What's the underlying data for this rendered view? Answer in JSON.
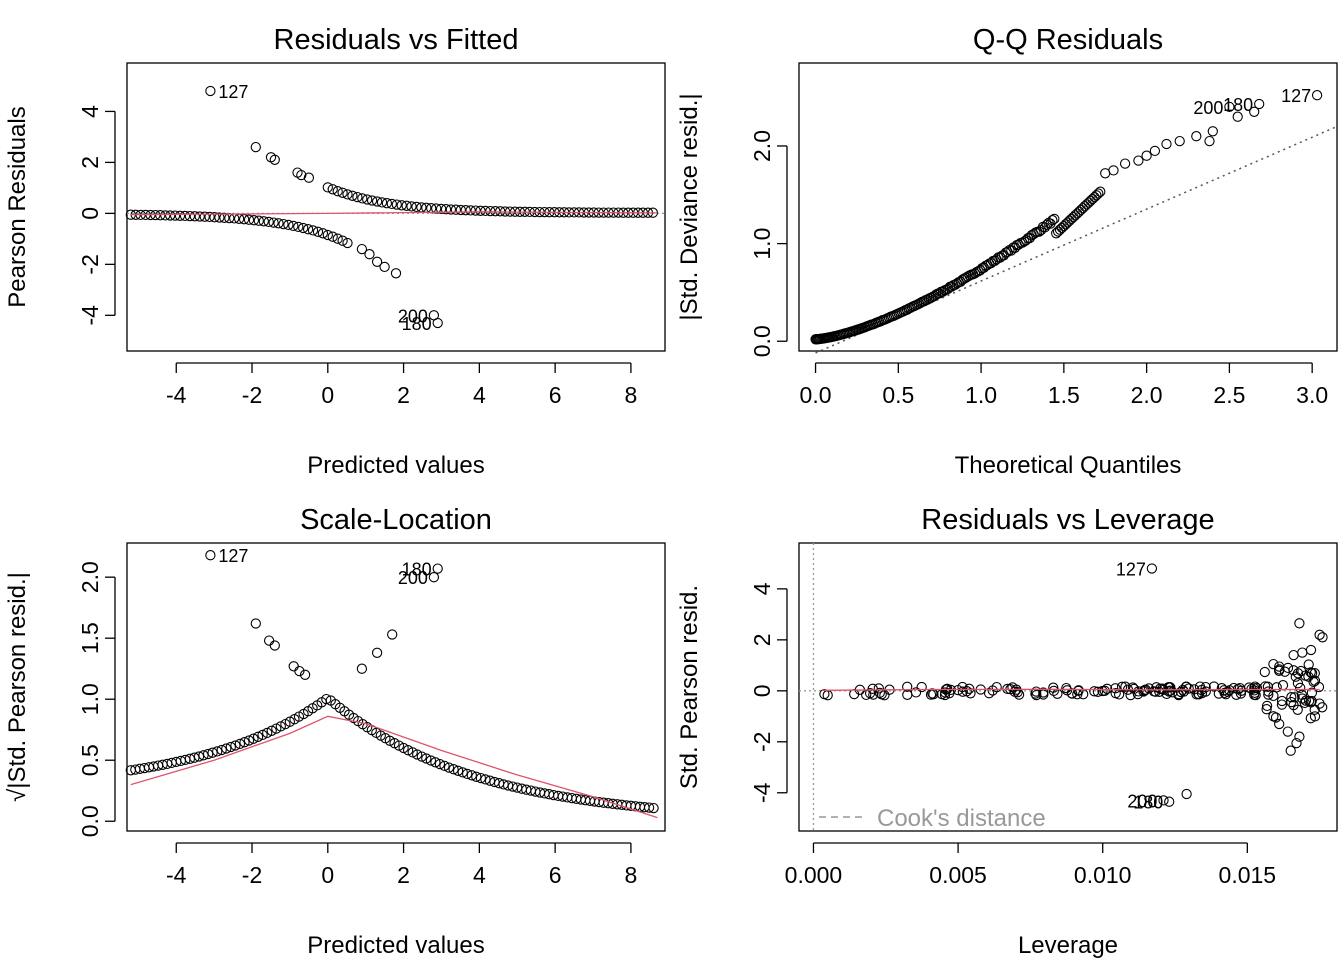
{
  "chart_data": [
    {
      "type": "scatter",
      "title": "Residuals vs Fitted",
      "xlabel": "Predicted values",
      "ylabel": "Pearson Residuals",
      "xticks": [
        -4,
        -2,
        0,
        2,
        4,
        6,
        8
      ],
      "yticks": [
        -4,
        -2,
        0,
        2,
        4
      ],
      "xlim": [
        -5.3,
        8.9
      ],
      "ylim": [
        -5.4,
        5.9
      ],
      "reference_line": {
        "y": 0,
        "style": "dotted",
        "color": "#999999"
      },
      "smooth_color": "#DF536B",
      "smooth": {
        "x": [
          -5.2,
          -3,
          0,
          2,
          4,
          6,
          8.7
        ],
        "y": [
          -0.05,
          -0.03,
          0.0,
          0.03,
          0.06,
          0.04,
          0.02
        ]
      },
      "upper_branch": {
        "x_start": 0,
        "x_end": 8.7,
        "y_start": 1.0,
        "decay": 0.62
      },
      "lower_branch": {
        "x_start": -5.2,
        "x_end": 0.6,
        "y_end": -1.2,
        "decay": 0.62
      },
      "points_extra": [
        {
          "x": -1.9,
          "y": 2.6
        },
        {
          "x": -1.5,
          "y": 2.2
        },
        {
          "x": -1.4,
          "y": 2.1
        },
        {
          "x": -0.8,
          "y": 1.6
        },
        {
          "x": -0.7,
          "y": 1.5
        },
        {
          "x": -0.5,
          "y": 1.4
        },
        {
          "x": 0.9,
          "y": -1.4
        },
        {
          "x": 1.1,
          "y": -1.6
        },
        {
          "x": 1.3,
          "y": -1.9
        },
        {
          "x": 1.5,
          "y": -2.1
        },
        {
          "x": 1.8,
          "y": -2.35
        }
      ],
      "labeled_points": [
        {
          "x": -3.1,
          "y": 4.8,
          "label": "127",
          "side": "right"
        },
        {
          "x": 2.9,
          "y": -4.3,
          "label": "180",
          "side": "left"
        },
        {
          "x": 2.8,
          "y": -4.0,
          "label": "200",
          "side": "left"
        }
      ]
    },
    {
      "type": "scatter",
      "title": "Q-Q Residuals",
      "xlabel": "Theoretical Quantiles",
      "ylabel": "|Std. Deviance resid.|",
      "xticks": [
        "0.0",
        "0.5",
        "1.0",
        "1.5",
        "2.0",
        "2.5",
        "3.0"
      ],
      "yticks": [
        "0.0",
        "1.0",
        "2.0"
      ],
      "xlim": [
        -0.1,
        3.15
      ],
      "ylim": [
        -0.1,
        2.85
      ],
      "qq_line": {
        "x": [
          0,
          3.15
        ],
        "y": [
          -0.12,
          2.2
        ]
      },
      "points_extra": [
        {
          "x": 1.75,
          "y": 1.72
        },
        {
          "x": 1.8,
          "y": 1.75
        },
        {
          "x": 1.87,
          "y": 1.82
        },
        {
          "x": 1.95,
          "y": 1.85
        },
        {
          "x": 2.0,
          "y": 1.9
        },
        {
          "x": 2.05,
          "y": 1.95
        },
        {
          "x": 2.12,
          "y": 2.02
        },
        {
          "x": 2.2,
          "y": 2.05
        },
        {
          "x": 2.3,
          "y": 2.1
        },
        {
          "x": 2.4,
          "y": 2.15
        },
        {
          "x": 2.55,
          "y": 2.3
        },
        {
          "x": 2.65,
          "y": 2.35
        },
        {
          "x": 2.38,
          "y": 2.05
        }
      ],
      "labeled_points": [
        {
          "x": 2.5,
          "y": 2.4,
          "label": "200",
          "side": "left"
        },
        {
          "x": 2.68,
          "y": 2.43,
          "label": "180",
          "side": "left"
        },
        {
          "x": 3.03,
          "y": 2.52,
          "label": "127",
          "side": "left"
        }
      ]
    },
    {
      "type": "scatter",
      "title": "Scale-Location",
      "xlabel": "Predicted values",
      "ylabel": "√|Std. Pearson resid.|",
      "xticks": [
        -4,
        -2,
        0,
        2,
        4,
        6,
        8
      ],
      "yticks": [
        "0.0",
        "0.5",
        "1.0",
        "1.5",
        "2.0"
      ],
      "xlim": [
        -5.3,
        8.9
      ],
      "ylim": [
        -0.08,
        2.28
      ],
      "smooth_color": "#DF536B",
      "smooth": {
        "x": [
          -5.2,
          -3,
          -1,
          0,
          1,
          3,
          5,
          7,
          8.7
        ],
        "y": [
          0.3,
          0.5,
          0.72,
          0.86,
          0.8,
          0.58,
          0.38,
          0.2,
          0.03
        ]
      },
      "points_extra": [
        {
          "x": -1.9,
          "y": 1.62
        },
        {
          "x": -1.55,
          "y": 1.48
        },
        {
          "x": -1.4,
          "y": 1.44
        },
        {
          "x": -0.9,
          "y": 1.27
        },
        {
          "x": -0.75,
          "y": 1.23
        },
        {
          "x": -0.6,
          "y": 1.2
        },
        {
          "x": 0.9,
          "y": 1.25
        },
        {
          "x": 1.3,
          "y": 1.38
        },
        {
          "x": 1.7,
          "y": 1.53
        }
      ],
      "labeled_points": [
        {
          "x": -3.1,
          "y": 2.18,
          "label": "127",
          "side": "right"
        },
        {
          "x": 2.9,
          "y": 2.07,
          "label": "180",
          "side": "left"
        },
        {
          "x": 2.8,
          "y": 2.0,
          "label": "200",
          "side": "left"
        }
      ]
    },
    {
      "type": "scatter",
      "title": "Residuals vs Leverage",
      "xlabel": "Leverage",
      "ylabel": "Std. Pearson resid.",
      "xticks": [
        "0.000",
        "0.005",
        "0.010",
        "0.015"
      ],
      "yticks": [
        -4,
        -2,
        0,
        2,
        4
      ],
      "xlim": [
        -0.0005,
        0.0181
      ],
      "ylim": [
        -5.5,
        5.8
      ],
      "reference_line": {
        "y": 0,
        "x": 0,
        "style": "dotted",
        "color": "#999999"
      },
      "smooth_color": "#DF536B",
      "smooth": {
        "x": [
          0.0003,
          0.004,
          0.008,
          0.012,
          0.015,
          0.0175
        ],
        "y": [
          0.02,
          0.05,
          0.06,
          0.04,
          0.05,
          0.05
        ]
      },
      "legend": {
        "label": "Cook's distance",
        "position": "bottom-left"
      },
      "points_extra": [
        {
          "x": 0.0168,
          "y": 2.65
        },
        {
          "x": 0.0166,
          "y": 1.4
        },
        {
          "x": 0.0169,
          "y": 1.5
        },
        {
          "x": 0.0172,
          "y": 1.6
        },
        {
          "x": 0.0175,
          "y": 2.2
        },
        {
          "x": 0.0176,
          "y": 2.1
        },
        {
          "x": 0.0159,
          "y": 1.05
        },
        {
          "x": 0.0161,
          "y": 0.95
        },
        {
          "x": 0.0163,
          "y": 0.75
        },
        {
          "x": 0.0159,
          "y": -1.0
        },
        {
          "x": 0.0161,
          "y": -1.3
        },
        {
          "x": 0.0164,
          "y": -1.6
        },
        {
          "x": 0.0165,
          "y": -2.35
        },
        {
          "x": 0.0167,
          "y": -2.05
        },
        {
          "x": 0.0168,
          "y": -1.8
        },
        {
          "x": 0.0172,
          "y": -0.45
        },
        {
          "x": 0.0175,
          "y": -0.5
        },
        {
          "x": 0.0169,
          "y": -0.3
        },
        {
          "x": 0.0159,
          "y": -0.2
        },
        {
          "x": 0.0162,
          "y": -0.4
        }
      ],
      "labeled_points": [
        {
          "x": 0.0117,
          "y": 4.8,
          "label": "127",
          "side": "left"
        },
        {
          "x": 0.0123,
          "y": -4.35,
          "label": "180",
          "side": "left"
        },
        {
          "x": 0.0121,
          "y": -4.3,
          "label": "200",
          "side": "left"
        },
        {
          "x": 0.0129,
          "y": -4.05,
          "label": "",
          "side": "left"
        }
      ]
    }
  ]
}
